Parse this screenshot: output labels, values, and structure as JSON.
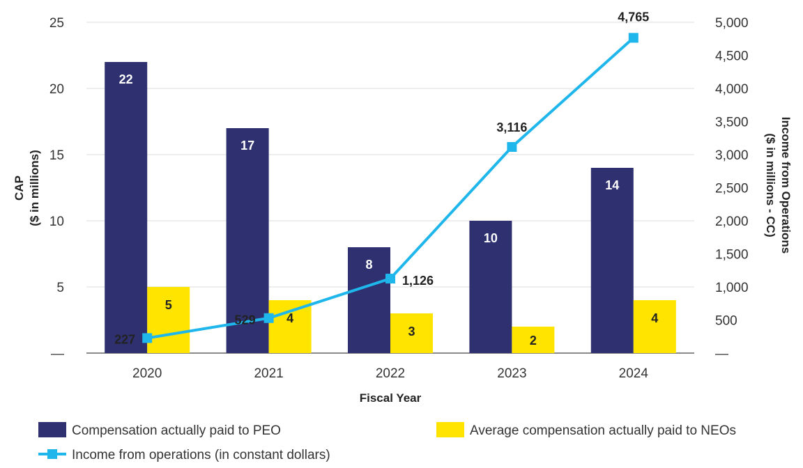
{
  "chart_data": {
    "type": "bar",
    "categories": [
      "2020",
      "2021",
      "2022",
      "2023",
      "2024"
    ],
    "series": [
      {
        "name": "Compensation actually paid to PEO",
        "values": [
          22,
          17,
          8,
          10,
          14
        ],
        "labels": [
          "22",
          "17",
          "8",
          "10",
          "14"
        ],
        "axis": "left",
        "color": "#2e3070"
      },
      {
        "name": "Average compensation actually paid to NEOs",
        "values": [
          5,
          4,
          3,
          2,
          4
        ],
        "labels": [
          "5",
          "4",
          "3",
          "2",
          "4"
        ],
        "axis": "left",
        "color": "#ffe400"
      },
      {
        "name": "Income from operations (in constant dollars)",
        "type": "line",
        "values": [
          227,
          529,
          1126,
          3116,
          4765
        ],
        "labels": [
          "227",
          "529",
          "1,126",
          "3,116",
          "4,765"
        ],
        "axis": "right",
        "color": "#1fb6ec"
      }
    ],
    "xlabel": "Fiscal Year",
    "ylabel_lines": [
      "CAP",
      "($ in millions)"
    ],
    "y2label_lines": [
      "Income from Operations",
      "($ in millions - CC)"
    ],
    "ylim": [
      0,
      25
    ],
    "y2lim": [
      0,
      5000
    ],
    "yticks": [
      "—",
      "5",
      "10",
      "15",
      "20",
      "25"
    ],
    "y2ticks": [
      "—",
      "500",
      "1,000",
      "1,500",
      "2,000",
      "2,500",
      "3,000",
      "3,500",
      "4,000",
      "4,500",
      "5,000"
    ],
    "grid": true,
    "legend_position": "bottom"
  }
}
